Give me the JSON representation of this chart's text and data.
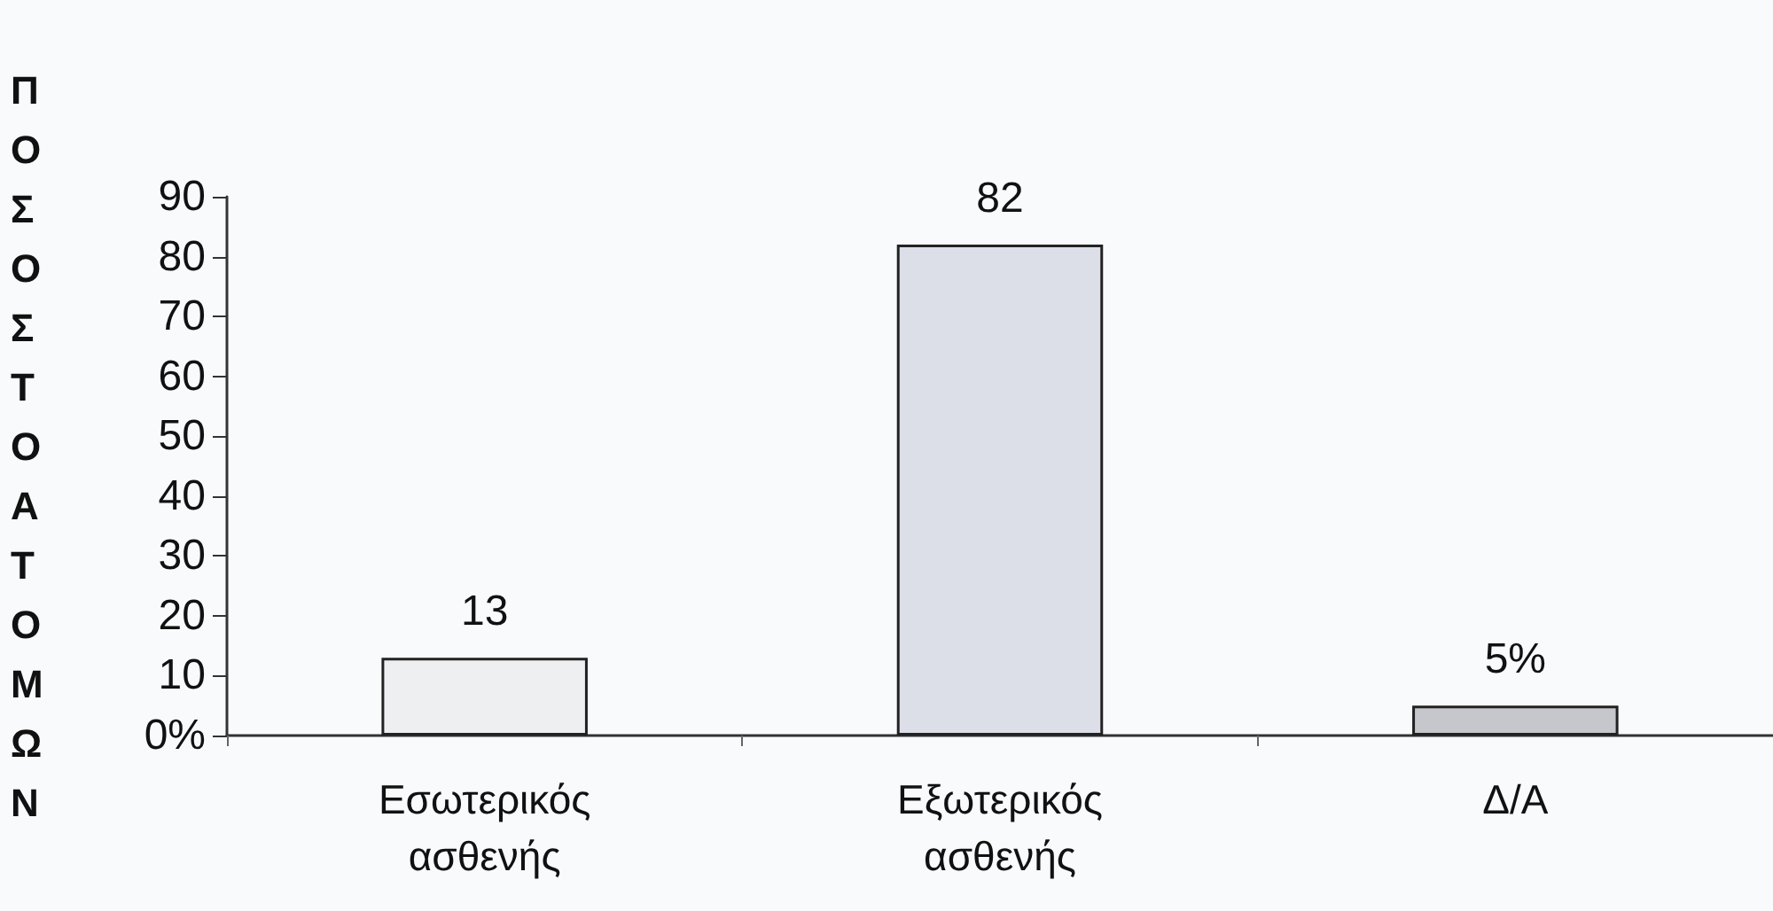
{
  "chart_data": {
    "type": "bar",
    "ylabel": "ΠΟΣΟΣΤΟΑΤΟΜΩΝ",
    "categories": [
      "Εσωτερικός\nασθενής",
      "Εξωτερικός\nασθενής",
      "Δ/Α"
    ],
    "values": [
      13,
      82,
      5
    ],
    "colors": [
      "#eeeff1",
      "#dcdee8",
      "#c6c7cc"
    ],
    "value_labels": [
      "13",
      "82",
      "5%"
    ],
    "ylim": [
      0,
      90
    ],
    "yticks": [
      {
        "value": 0,
        "label": "0%"
      },
      10,
      20,
      30,
      40,
      50,
      60,
      70,
      80,
      90
    ],
    "grid": false
  }
}
